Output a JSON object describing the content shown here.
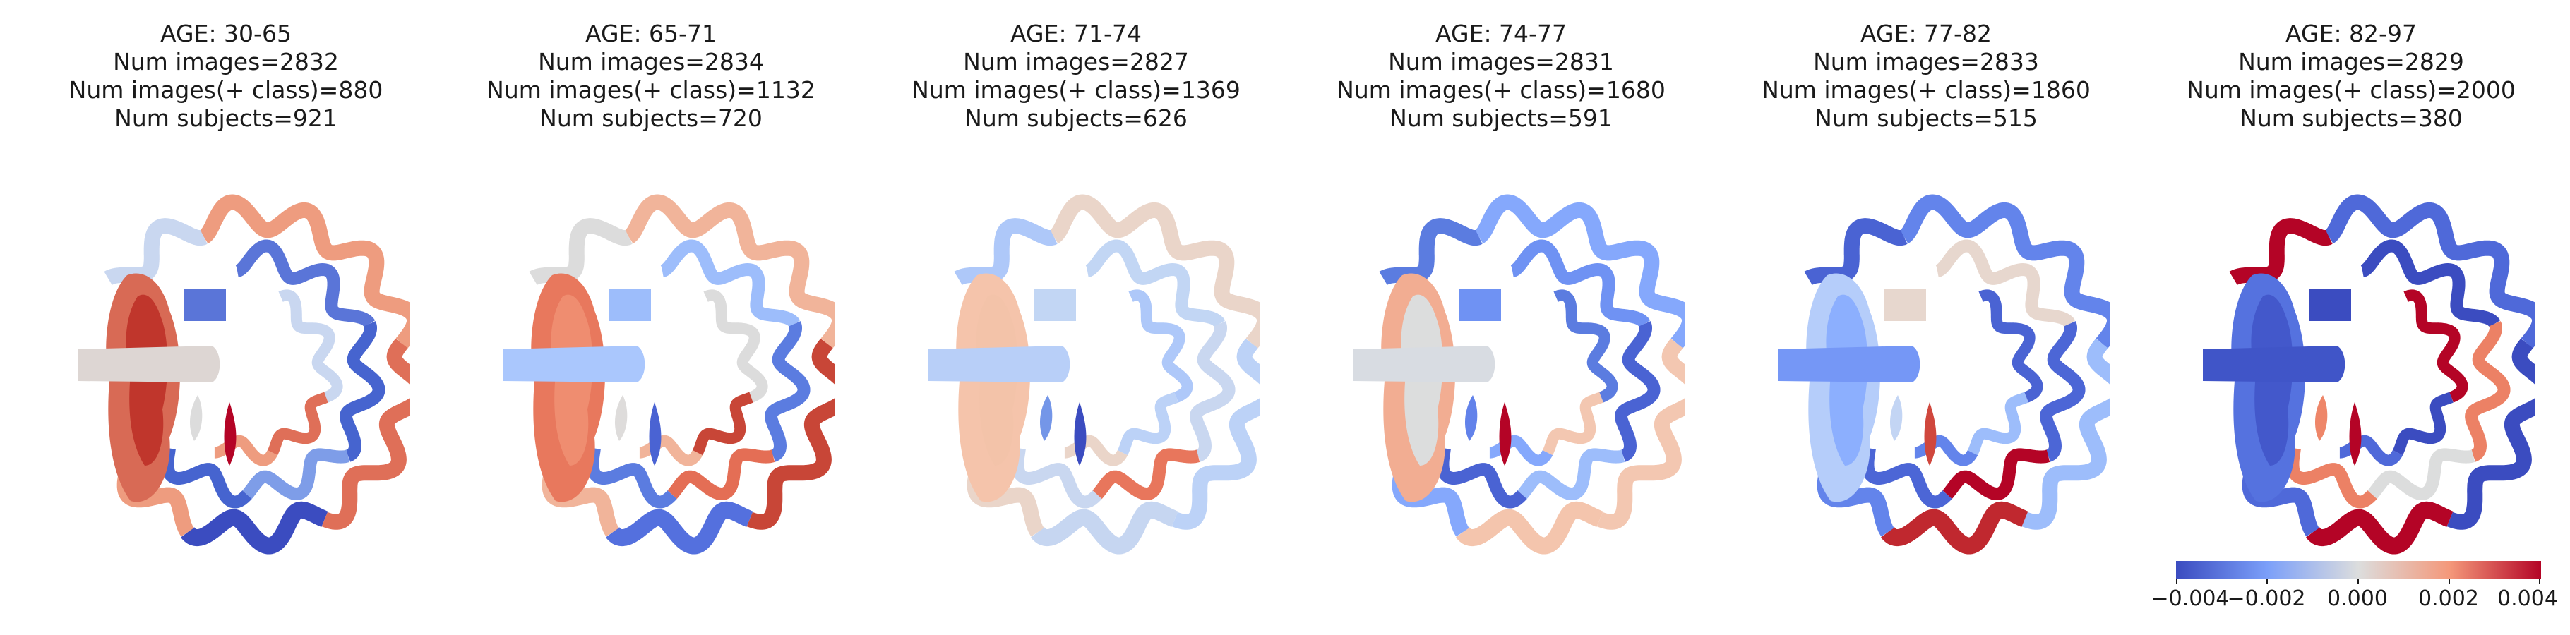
{
  "panels": [
    {
      "age": "AGE: 30-65",
      "images": "Num images=2832",
      "images_pos": "Num images(+ class)=880",
      "subjects": "Num subjects=921",
      "colors": {
        "front": "#c0362c",
        "frontRim": "#d86a55",
        "prong": "#ddd6d3",
        "left1": "#c9d7f0",
        "left2": "#5a75d8",
        "left3": "#7e9de8",
        "right1": "#ee9c7f",
        "right2": "#4664cf",
        "right3": "#df6f58",
        "innerR": "#b40426",
        "innerL": "#dcdcdc",
        "bottom": "#3b4cc0"
      }
    },
    {
      "age": "AGE: 65-71",
      "images": "Num images=2834",
      "images_pos": "Num images(+ class)=1132",
      "subjects": "Num subjects=720",
      "colors": {
        "front": "#ef8d70",
        "frontRim": "#e8785d",
        "prong": "#aac7fd",
        "left1": "#dcdcdc",
        "left2": "#9dbdfb",
        "left3": "#e46e55",
        "right1": "#f1b49a",
        "right2": "#5b7ce0",
        "right3": "#c84637",
        "innerR": "#4a63d3",
        "innerL": "#dedcdb",
        "bottom": "#5470de"
      }
    },
    {
      "age": "AGE: 71-74",
      "images": "Num images=2827",
      "images_pos": "Num images(+ class)=1369",
      "subjects": "Num subjects=626",
      "colors": {
        "front": "#f3c3a9",
        "frontRim": "#f5c4ab",
        "prong": "#b8cff8",
        "left1": "#aec8f9",
        "left2": "#c2d6f4",
        "left3": "#e8765c",
        "right1": "#ead5c9",
        "right2": "#c9d7f0",
        "right3": "#bcd2f7",
        "innerR": "#3b4cc0",
        "innerL": "#7496e8",
        "bottom": "#c6d6f1"
      }
    },
    {
      "age": "AGE: 74-77",
      "images": "Num images=2831",
      "images_pos": "Num images(+ class)=1680",
      "subjects": "Num subjects=591",
      "colors": {
        "front": "#dcdddd",
        "frontRim": "#f2ad92",
        "prong": "#d8dce2",
        "left1": "#5b7ce0",
        "left2": "#6f92f3",
        "left3": "#9dbdfb",
        "right1": "#85a8fc",
        "right2": "#4a63d3",
        "right3": "#f3c7b1",
        "innerR": "#b40426",
        "innerL": "#6282ea",
        "bottom": "#f4c5ad"
      }
    },
    {
      "age": "AGE: 77-82",
      "images": "Num images=2833",
      "images_pos": "Num images(+ class)=1860",
      "subjects": "Num subjects=515",
      "colors": {
        "front": "#8caffe",
        "frontRim": "#b5cdfa",
        "prong": "#7597f6",
        "left1": "#4a63d3",
        "left2": "#e7d7ce",
        "left3": "#b40426",
        "right1": "#6384eb",
        "right2": "#4c66d6",
        "right3": "#9dbdfb",
        "innerR": "#d0473d",
        "innerL": "#c3d5f4",
        "bottom": "#c0282f"
      }
    },
    {
      "age": "AGE: 82-97",
      "images": "Num images=2829",
      "images_pos": "Num images(+ class)=2000",
      "subjects": "Num subjects=380",
      "colors": {
        "front": "#4358cb",
        "frontRim": "#5572df",
        "prong": "#4055c8",
        "left1": "#b40426",
        "left2": "#3b4cc0",
        "left3": "#dcdddd",
        "right1": "#4f69d9",
        "right2": "#ec8165",
        "right3": "#3b4cc0",
        "innerR": "#b40426",
        "innerL": "#ee8669",
        "bottom": "#b40426"
      }
    }
  ],
  "colorbar": {
    "ticks": [
      "−0.004",
      "−0.002",
      "0.000",
      "0.002",
      "0.004"
    ],
    "colors": [
      "#3b4cc0",
      "#7b9ff9",
      "#dcdddd",
      "#f4987a",
      "#b40426"
    ]
  }
}
